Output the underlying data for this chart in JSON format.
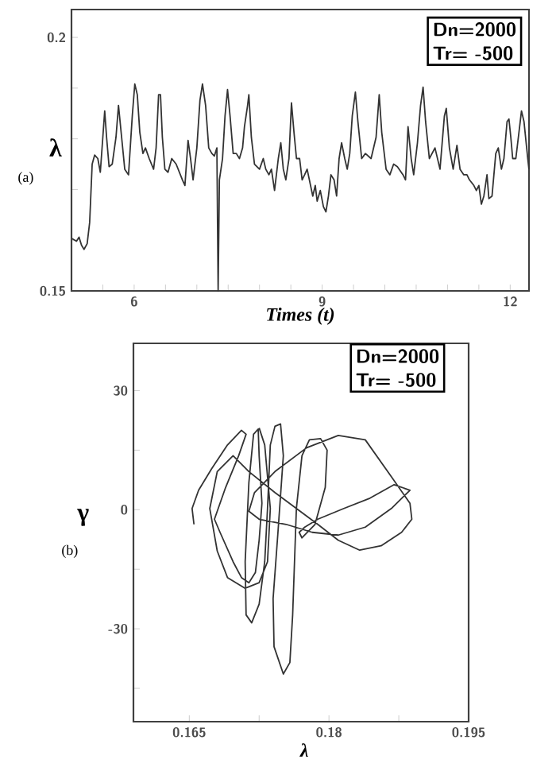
{
  "chart_data": [
    {
      "type": "line",
      "xlabel": "Times (t)",
      "ylabel": "λ",
      "annotations": [
        "Dn=2000",
        "Tr= -500",
        "(a)"
      ],
      "xlim": [
        5,
        12.3
      ],
      "ylim": [
        0.15,
        0.2055
      ],
      "xticks": [
        {
          "value": 5.5,
          "label": null
        },
        6,
        {
          "value": 6.5,
          "label": null
        },
        {
          "value": 7,
          "label": null
        },
        {
          "value": 7.5,
          "label": null
        },
        {
          "value": 8,
          "label": null
        },
        {
          "value": 8.5,
          "label": null
        },
        9,
        {
          "value": 9.5,
          "label": null
        },
        {
          "value": 10,
          "label": null
        },
        {
          "value": 10.5,
          "label": null
        },
        {
          "value": 11,
          "label": null
        },
        {
          "value": 11.5,
          "label": null
        },
        12
      ],
      "yticks": [
        0.15,
        {
          "value": 0.16,
          "label": null
        },
        {
          "value": 0.17,
          "label": null
        },
        {
          "value": 0.18,
          "label": null
        },
        {
          "value": 0.19,
          "label": null
        },
        0.2
      ],
      "x": [
        5.01,
        5.08,
        5.12,
        5.16,
        5.2,
        5.25,
        5.29,
        5.33,
        5.37,
        5.42,
        5.46,
        5.5,
        5.53,
        5.56,
        5.6,
        5.65,
        5.71,
        5.75,
        5.8,
        5.85,
        5.91,
        5.97,
        6.01,
        6.05,
        6.09,
        6.14,
        6.18,
        6.24,
        6.31,
        6.35,
        6.39,
        6.42,
        6.45,
        6.49,
        6.54,
        6.6,
        6.67,
        6.77,
        6.81,
        6.86,
        6.9,
        6.94,
        7.0,
        7.05,
        7.09,
        7.14,
        7.19,
        7.24,
        7.28,
        7.32,
        7.34,
        7.36,
        7.41,
        7.45,
        7.49,
        7.53,
        7.58,
        7.63,
        7.68,
        7.73,
        7.76,
        7.81,
        7.83,
        7.87,
        7.92,
        8.0,
        8.06,
        8.1,
        8.15,
        8.19,
        8.24,
        8.3,
        8.34,
        8.38,
        8.42,
        8.47,
        8.51,
        8.55,
        8.59,
        8.64,
        8.68,
        8.72,
        8.76,
        8.85,
        8.89,
        8.92,
        8.97,
        9.02,
        9.06,
        9.1,
        9.14,
        9.19,
        9.23,
        9.27,
        9.31,
        9.36,
        9.4,
        9.44,
        9.48,
        9.53,
        9.57,
        9.63,
        9.69,
        9.78,
        9.86,
        9.91,
        9.95,
        10.02,
        10.08,
        10.14,
        10.2,
        10.29,
        10.33,
        10.37,
        10.42,
        10.46,
        10.52,
        10.57,
        10.61,
        10.65,
        10.71,
        10.8,
        10.88,
        10.95,
        10.98,
        11.03,
        11.09,
        11.15,
        11.2,
        11.26,
        11.31,
        11.35,
        11.42,
        11.46,
        11.5,
        11.54,
        11.58,
        11.63,
        11.66,
        11.71,
        11.77,
        11.81,
        11.86,
        11.9,
        11.95,
        11.98,
        12.01,
        12.04,
        12.09,
        12.14,
        12.18,
        12.22,
        12.28,
        12.3
      ],
      "series": [
        {
          "color": "#333333",
          "values": [
            0.1603,
            0.1598,
            0.1606,
            0.159,
            0.1582,
            0.1593,
            0.1635,
            0.175,
            0.1768,
            0.1761,
            0.1734,
            0.1803,
            0.1855,
            0.1803,
            0.1745,
            0.175,
            0.1803,
            0.1866,
            0.1803,
            0.174,
            0.1729,
            0.1845,
            0.1908,
            0.1887,
            0.1813,
            0.1771,
            0.1782,
            0.1761,
            0.174,
            0.1782,
            0.1887,
            0.1887,
            0.1803,
            0.174,
            0.1734,
            0.1761,
            0.175,
            0.1719,
            0.1708,
            0.1797,
            0.1761,
            0.1719,
            0.1782,
            0.1876,
            0.1908,
            0.1866,
            0.1782,
            0.1771,
            0.1766,
            0.1782,
            0.15,
            0.1719,
            0.1761,
            0.1845,
            0.1897,
            0.1845,
            0.1771,
            0.1771,
            0.1761,
            0.1782,
            0.1824,
            0.1866,
            0.1887,
            0.1803,
            0.175,
            0.174,
            0.1761,
            0.174,
            0.1729,
            0.174,
            0.1698,
            0.1761,
            0.1792,
            0.174,
            0.1719,
            0.1761,
            0.1871,
            0.1813,
            0.1761,
            0.1761,
            0.1719,
            0.1729,
            0.174,
            0.1687,
            0.1708,
            0.1677,
            0.1698,
            0.1666,
            0.1656,
            0.1687,
            0.1729,
            0.1719,
            0.1687,
            0.1761,
            0.1792,
            0.1761,
            0.174,
            0.1771,
            0.1845,
            0.1892,
            0.1834,
            0.1761,
            0.1771,
            0.1761,
            0.1803,
            0.1887,
            0.1813,
            0.174,
            0.1729,
            0.175,
            0.1745,
            0.1729,
            0.1719,
            0.1824,
            0.1761,
            0.1729,
            0.1792,
            0.1866,
            0.1902,
            0.1834,
            0.1761,
            0.1782,
            0.174,
            0.1845,
            0.186,
            0.1782,
            0.174,
            0.1787,
            0.174,
            0.1729,
            0.1729,
            0.1719,
            0.1708,
            0.1698,
            0.1708,
            0.1671,
            0.1687,
            0.1729,
            0.1682,
            0.1687,
            0.1771,
            0.1782,
            0.174,
            0.1761,
            0.1834,
            0.1839,
            0.1803,
            0.1761,
            0.1761,
            0.1813,
            0.1855,
            0.1834,
            0.1761,
            0.174
          ]
        }
      ]
    },
    {
      "type": "line",
      "xlabel": "λ",
      "ylabel": "γ",
      "annotations": [
        "Dn=2000",
        "Tr= -500",
        "(b)"
      ],
      "xlim": [
        0.159,
        0.195
      ],
      "ylim": [
        -53.4,
        41.9
      ],
      "xticks": [
        0.165,
        {
          "value": 0.1725,
          "label": null
        },
        0.18,
        {
          "value": 0.1875,
          "label": null
        },
        0.195
      ],
      "yticks": [
        {
          "value": -45,
          "label": null
        },
        -30,
        {
          "value": -15,
          "label": null
        },
        0,
        {
          "value": 15,
          "label": null
        },
        30
      ],
      "x": [
        0.1655,
        0.1653,
        0.166,
        0.1674,
        0.1691,
        0.1706,
        0.1711,
        0.1703,
        0.1689,
        0.1677,
        0.1683,
        0.1697,
        0.1706,
        0.1714,
        0.1721,
        0.1725,
        0.1728,
        0.1725,
        0.1724,
        0.1719,
        0.1714,
        0.171,
        0.1711,
        0.1717,
        0.1725,
        0.1731,
        0.1734,
        0.1737,
        0.1742,
        0.1748,
        0.1751,
        0.1745,
        0.174,
        0.1741,
        0.1751,
        0.1758,
        0.1761,
        0.1763,
        0.1765,
        0.1771,
        0.1779,
        0.1791,
        0.1798,
        0.1796,
        0.1785,
        0.1771,
        0.1768,
        0.1774,
        0.1788,
        0.1816,
        0.1844,
        0.187,
        0.1887,
        0.1867,
        0.1839,
        0.181,
        0.1782,
        0.1754,
        0.1725,
        0.1714,
        0.172,
        0.1742,
        0.1776,
        0.181,
        0.1839,
        0.1867,
        0.1887,
        0.1889,
        0.1878,
        0.1856,
        0.1833,
        0.181,
        0.1788,
        0.1765,
        0.1742,
        0.1714,
        0.1697,
        0.168,
        0.1672,
        0.168,
        0.1691,
        0.171,
        0.1725,
        0.1734,
        0.1737,
        0.1731,
        0.1725
      ],
      "series": [
        {
          "color": "#333333",
          "values": [
            -3.7,
            0.3,
            4.9,
            10.3,
            16.3,
            20.0,
            19.0,
            13.6,
            5.6,
            -2.4,
            -5.7,
            -13.1,
            -17.1,
            -18.4,
            -15.8,
            -7.7,
            1.6,
            13.6,
            20.3,
            19.0,
            6.9,
            -13.1,
            -26.5,
            -28.5,
            -23.8,
            -13.1,
            0.3,
            16.3,
            21.0,
            21.6,
            13.6,
            -6.4,
            -22.4,
            -34.5,
            -41.4,
            -38.5,
            -26.5,
            -13.1,
            0.3,
            13.6,
            17.6,
            17.9,
            15.0,
            5.6,
            -3.7,
            -7.1,
            -5.7,
            -4.4,
            -2.4,
            0.3,
            2.9,
            6.3,
            4.9,
            0.3,
            -4.4,
            -6.4,
            -5.7,
            -3.7,
            -2.4,
            -0.4,
            4.3,
            9.6,
            15.6,
            18.7,
            17.6,
            8.3,
            1.6,
            -2.4,
            -5.7,
            -9.1,
            -10.2,
            -7.7,
            -3.7,
            0.3,
            4.3,
            9.6,
            13.6,
            9.6,
            0.3,
            -10.4,
            -17.1,
            -19.8,
            -18.4,
            -13.1,
            0.3,
            16.3,
            20.6
          ]
        }
      ]
    }
  ]
}
